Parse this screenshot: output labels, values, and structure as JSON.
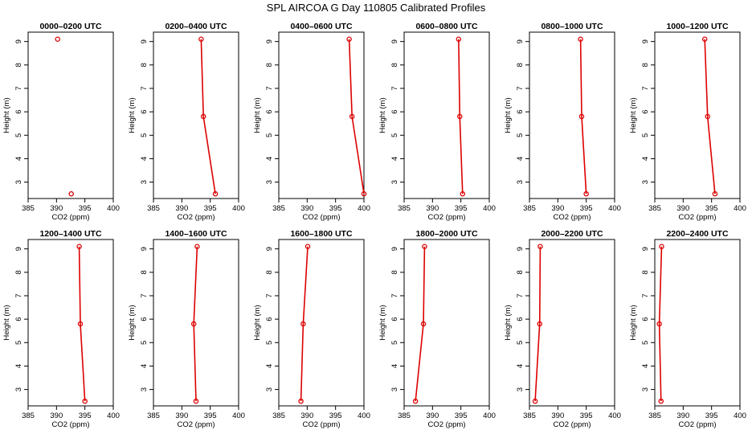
{
  "figure": {
    "title": "SPL AIRCOA G  Day 110805  Calibrated Profiles"
  },
  "chart_data": [
    {
      "type": "line",
      "title": "0000–0200 UTC",
      "xlabel": "CO2 (ppm)",
      "ylabel": "Height (m)",
      "xlim": [
        385,
        400
      ],
      "ylim": [
        2.3,
        9.4
      ],
      "x_ticks": [
        385,
        390,
        395,
        400
      ],
      "y_ticks": [
        3,
        4,
        5,
        6,
        7,
        8,
        9
      ],
      "connected": false,
      "series": [
        {
          "x": [
            390.2,
            392.6
          ],
          "y": [
            9.1,
            2.5
          ]
        }
      ]
    },
    {
      "type": "line",
      "title": "0200–0400 UTC",
      "xlabel": "CO2 (ppm)",
      "ylabel": "Height (m)",
      "xlim": [
        385,
        400
      ],
      "ylim": [
        2.3,
        9.4
      ],
      "x_ticks": [
        385,
        390,
        395,
        400
      ],
      "y_ticks": [
        3,
        4,
        5,
        6,
        7,
        8,
        9
      ],
      "connected": true,
      "series": [
        {
          "x": [
            393.4,
            393.8,
            395.9
          ],
          "y": [
            9.1,
            5.8,
            2.5
          ]
        }
      ]
    },
    {
      "type": "line",
      "title": "0400–0600 UTC",
      "xlabel": "CO2 (ppm)",
      "ylabel": "Height (m)",
      "xlim": [
        385,
        400
      ],
      "ylim": [
        2.3,
        9.4
      ],
      "x_ticks": [
        385,
        390,
        395,
        400
      ],
      "y_ticks": [
        3,
        4,
        5,
        6,
        7,
        8,
        9
      ],
      "connected": true,
      "series": [
        {
          "x": [
            397.4,
            397.9,
            400.0
          ],
          "y": [
            9.1,
            5.8,
            2.5
          ]
        }
      ]
    },
    {
      "type": "line",
      "title": "0600–0800 UTC",
      "xlabel": "CO2 (ppm)",
      "ylabel": "Height (m)",
      "xlim": [
        385,
        400
      ],
      "ylim": [
        2.3,
        9.4
      ],
      "x_ticks": [
        385,
        390,
        395,
        400
      ],
      "y_ticks": [
        3,
        4,
        5,
        6,
        7,
        8,
        9
      ],
      "connected": true,
      "series": [
        {
          "x": [
            394.6,
            394.8,
            395.3
          ],
          "y": [
            9.1,
            5.8,
            2.5
          ]
        }
      ]
    },
    {
      "type": "line",
      "title": "0800–1000 UTC",
      "xlabel": "CO2 (ppm)",
      "ylabel": "Height (m)",
      "xlim": [
        385,
        400
      ],
      "ylim": [
        2.3,
        9.4
      ],
      "x_ticks": [
        385,
        390,
        395,
        400
      ],
      "y_ticks": [
        3,
        4,
        5,
        6,
        7,
        8,
        9
      ],
      "connected": true,
      "series": [
        {
          "x": [
            394.0,
            394.2,
            395.0
          ],
          "y": [
            9.1,
            5.8,
            2.5
          ]
        }
      ]
    },
    {
      "type": "line",
      "title": "1000–1200 UTC",
      "xlabel": "CO2 (ppm)",
      "ylabel": "Height (m)",
      "xlim": [
        385,
        400
      ],
      "ylim": [
        2.3,
        9.4
      ],
      "x_ticks": [
        385,
        390,
        395,
        400
      ],
      "y_ticks": [
        3,
        4,
        5,
        6,
        7,
        8,
        9
      ],
      "connected": true,
      "series": [
        {
          "x": [
            393.8,
            394.3,
            395.6
          ],
          "y": [
            9.1,
            5.8,
            2.5
          ]
        }
      ]
    },
    {
      "type": "line",
      "title": "1200–1400 UTC",
      "xlabel": "CO2 (ppm)",
      "ylabel": "Height (m)",
      "xlim": [
        385,
        400
      ],
      "ylim": [
        2.3,
        9.4
      ],
      "x_ticks": [
        385,
        390,
        395,
        400
      ],
      "y_ticks": [
        3,
        4,
        5,
        6,
        7,
        8,
        9
      ],
      "connected": true,
      "series": [
        {
          "x": [
            394.0,
            394.2,
            395.0
          ],
          "y": [
            9.1,
            5.8,
            2.5
          ]
        }
      ]
    },
    {
      "type": "line",
      "title": "1400–1600 UTC",
      "xlabel": "CO2 (ppm)",
      "ylabel": "Height (m)",
      "xlim": [
        385,
        400
      ],
      "ylim": [
        2.3,
        9.4
      ],
      "x_ticks": [
        385,
        390,
        395,
        400
      ],
      "y_ticks": [
        3,
        4,
        5,
        6,
        7,
        8,
        9
      ],
      "connected": true,
      "series": [
        {
          "x": [
            392.7,
            392.1,
            392.5
          ],
          "y": [
            9.1,
            5.8,
            2.5
          ]
        }
      ]
    },
    {
      "type": "line",
      "title": "1600–1800 UTC",
      "xlabel": "CO2 (ppm)",
      "ylabel": "Height (m)",
      "xlim": [
        385,
        400
      ],
      "ylim": [
        2.3,
        9.4
      ],
      "x_ticks": [
        385,
        390,
        395,
        400
      ],
      "y_ticks": [
        3,
        4,
        5,
        6,
        7,
        8,
        9
      ],
      "connected": true,
      "series": [
        {
          "x": [
            390.1,
            389.3,
            388.9
          ],
          "y": [
            9.1,
            5.8,
            2.5
          ]
        }
      ]
    },
    {
      "type": "line",
      "title": "1800–2000 UTC",
      "xlabel": "CO2 (ppm)",
      "ylabel": "Height (m)",
      "xlim": [
        385,
        400
      ],
      "ylim": [
        2.3,
        9.4
      ],
      "x_ticks": [
        385,
        390,
        395,
        400
      ],
      "y_ticks": [
        3,
        4,
        5,
        6,
        7,
        8,
        9
      ],
      "connected": true,
      "series": [
        {
          "x": [
            388.6,
            388.4,
            387.0
          ],
          "y": [
            9.1,
            5.8,
            2.5
          ]
        }
      ]
    },
    {
      "type": "line",
      "title": "2000–2200 UTC",
      "xlabel": "CO2 (ppm)",
      "ylabel": "Height (m)",
      "xlim": [
        385,
        400
      ],
      "ylim": [
        2.3,
        9.4
      ],
      "x_ticks": [
        385,
        390,
        395,
        400
      ],
      "y_ticks": [
        3,
        4,
        5,
        6,
        7,
        8,
        9
      ],
      "connected": true,
      "series": [
        {
          "x": [
            386.9,
            386.8,
            386.0
          ],
          "y": [
            9.1,
            5.8,
            2.5
          ]
        }
      ]
    },
    {
      "type": "line",
      "title": "2200–2400 UTC",
      "xlabel": "CO2 (ppm)",
      "ylabel": "Height (m)",
      "xlim": [
        385,
        400
      ],
      "ylim": [
        2.3,
        9.4
      ],
      "x_ticks": [
        385,
        390,
        395,
        400
      ],
      "y_ticks": [
        3,
        4,
        5,
        6,
        7,
        8,
        9
      ],
      "connected": true,
      "series": [
        {
          "x": [
            386.2,
            385.8,
            386.1
          ],
          "y": [
            9.1,
            5.8,
            2.5
          ]
        }
      ]
    }
  ],
  "colors": {
    "series": "#dd0000",
    "axis": "#000000"
  }
}
